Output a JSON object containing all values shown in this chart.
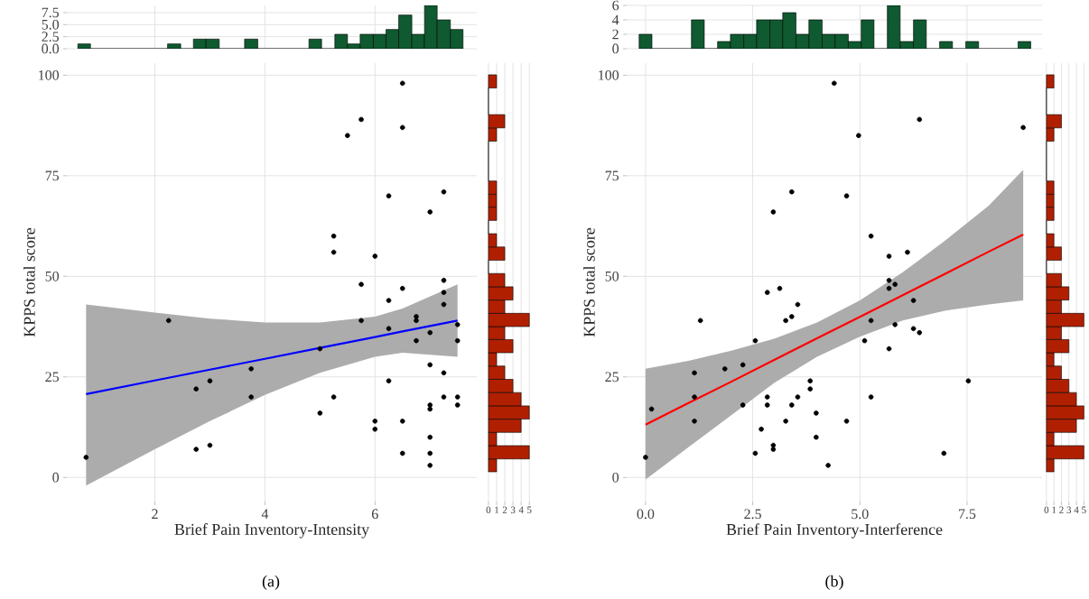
{
  "chart_data": [
    {
      "type": "scatter",
      "xlabel": "Brief Pain Inventory-Intensity",
      "ylabel": "KPPS total score",
      "annotations": [
        "(a)"
      ],
      "xlim": [
        0.4,
        7.85
      ],
      "ylim": [
        -6,
        103
      ],
      "xticks": [
        2,
        4,
        6
      ],
      "yticks": [
        0,
        25,
        50,
        75,
        100
      ],
      "grid": true,
      "series": [
        {
          "type": "line",
          "color": "#0000ff",
          "x": [
            0.75,
            2,
            3,
            4,
            5,
            6,
            6.5,
            7.5
          ],
          "values": [
            20.7,
            24.1,
            26.8,
            29.5,
            32.2,
            34.9,
            36.3,
            39.0
          ],
          "upper": [
            43,
            41,
            39.5,
            38.5,
            38.5,
            40,
            42,
            48
          ],
          "lower": [
            -2,
            7,
            14,
            20.5,
            26,
            30,
            31,
            30
          ]
        },
        {
          "type": "scatter",
          "color": "#000000",
          "marker": "circle",
          "x": [
            0.75,
            2.25,
            2.75,
            2.75,
            3,
            3,
            3.75,
            3.75,
            5,
            5,
            5.25,
            5.25,
            5.25,
            5.5,
            5.75,
            5.75,
            5.75,
            6,
            6,
            6,
            6.25,
            6.25,
            6.25,
            6.25,
            6.5,
            6.5,
            6.5,
            6.5,
            6.5,
            6.75,
            6.75,
            6.75,
            7,
            7,
            7,
            7,
            7,
            7,
            7,
            7,
            7.25,
            7.25,
            7.25,
            7.25,
            7.25,
            7.25,
            7.5,
            7.5,
            7.5,
            7.5
          ],
          "values": [
            5,
            39,
            22,
            7,
            24,
            8,
            27,
            20,
            32,
            16,
            60,
            56,
            20,
            85,
            89,
            48,
            39,
            55,
            14,
            12,
            70,
            44,
            37,
            24,
            98,
            87,
            47,
            14,
            6,
            40,
            39,
            34,
            66,
            36,
            28,
            18,
            17,
            10,
            6,
            3,
            71,
            49,
            46,
            43,
            26,
            20,
            38,
            34,
            20,
            18
          ]
        }
      ]
    },
    {
      "type": "histogram",
      "color": "#0f5a30",
      "bins": [
        0.6,
        0.83,
        2.23,
        2.47,
        2.7,
        2.93,
        3.17,
        3.63,
        3.87,
        4.8,
        5.03,
        5.27,
        5.5,
        5.73,
        5.97,
        6.2,
        6.43,
        6.67,
        6.9,
        7.13,
        7.37,
        7.6
      ],
      "values": [
        1,
        0,
        1,
        0,
        2,
        2,
        0,
        2,
        0,
        2,
        0,
        3,
        1,
        3,
        3,
        4,
        7,
        3,
        9,
        6,
        4
      ],
      "xlim": [
        0.4,
        7.85
      ],
      "ylim": [
        0,
        9
      ],
      "xticks": [
        2,
        4,
        6
      ],
      "yticks": [
        {
          "value": 0,
          "label": "0.0"
        },
        {
          "value": 2.5,
          "label": "2.5"
        },
        {
          "value": 5,
          "label": "5.0"
        },
        {
          "value": 7.5,
          "label": "7.5"
        }
      ],
      "tick_labels": "y",
      "grid": true
    },
    {
      "type": "histogram",
      "orientation": "horizontal",
      "color": "#b02000",
      "bins": [
        1.4,
        4.6,
        7.9,
        11.2,
        14.5,
        17.8,
        21.1,
        24.4,
        27.7,
        31.0,
        34.3,
        37.5,
        40.8,
        44.1,
        47.4,
        50.7,
        54.0,
        57.3,
        60.6,
        63.9,
        67.2,
        70.4,
        73.7,
        83.6,
        86.9,
        90.2,
        96.8,
        100.1
      ],
      "values": [
        1,
        5,
        1,
        4,
        5,
        4,
        3,
        2,
        1,
        3,
        2,
        5,
        2,
        3,
        2,
        0,
        2,
        1,
        0,
        1,
        1,
        1,
        0,
        1,
        2,
        0,
        1
      ],
      "xlim": [
        -0.1,
        5.2
      ],
      "xticks": [
        0,
        1,
        2,
        3,
        4,
        5
      ],
      "ylim": [
        -6,
        103
      ],
      "tick_labels": "x",
      "grid": "x"
    },
    {
      "type": "scatter",
      "xlabel": "Brief Pain Inventory-Interference",
      "ylabel": "KPPS total score",
      "annotations": [
        "(b)"
      ],
      "xlim": [
        -0.44,
        9.25
      ],
      "ylim": [
        -6,
        103
      ],
      "xticks": [
        {
          "value": 0,
          "label": "0.0"
        },
        {
          "value": 2.5,
          "label": "2.5"
        },
        {
          "value": 5,
          "label": "5.0"
        },
        {
          "value": 7.5,
          "label": "7.5"
        }
      ],
      "yticks": [
        0,
        25,
        50,
        75,
        100
      ],
      "grid": true,
      "series": [
        {
          "type": "line",
          "color": "#ff0000",
          "x": [
            0,
            1,
            2,
            3,
            4,
            5,
            6,
            7,
            8,
            8.81
          ],
          "values": [
            13.1,
            18.5,
            23.8,
            29.2,
            34.6,
            39.9,
            45.3,
            50.7,
            56.1,
            60.4
          ],
          "upper": [
            27,
            29,
            31.5,
            34.5,
            38.5,
            44,
            51,
            59,
            67.5,
            76.5
          ],
          "lower": [
            -0.5,
            7.5,
            15.5,
            23.5,
            30,
            35,
            39,
            41.5,
            43,
            44
          ]
        },
        {
          "type": "scatter",
          "color": "#000000",
          "marker": "circle",
          "x": [
            0,
            0.14,
            1.14,
            1.14,
            1.14,
            1.28,
            1.85,
            2.27,
            2.27,
            2.56,
            2.56,
            2.7,
            2.84,
            2.84,
            2.84,
            2.98,
            2.98,
            2.98,
            3.13,
            3.27,
            3.27,
            3.41,
            3.41,
            3.41,
            3.55,
            3.55,
            3.84,
            3.84,
            3.98,
            3.98,
            4.26,
            4.4,
            4.69,
            4.69,
            4.97,
            5.11,
            5.26,
            5.26,
            5.26,
            5.68,
            5.68,
            5.68,
            5.68,
            5.82,
            5.82,
            6.11,
            6.25,
            6.25,
            6.39,
            6.39,
            6.96,
            7.53,
            8.81
          ],
          "values": [
            5,
            17,
            26,
            20,
            14,
            39,
            27,
            28,
            18,
            34,
            6,
            12,
            46,
            20,
            18,
            66,
            8,
            7,
            47,
            39,
            14,
            71,
            40,
            18,
            20,
            43,
            24,
            22,
            16,
            10,
            3,
            98,
            70,
            14,
            85,
            34,
            60,
            39,
            20,
            55,
            49,
            47,
            32,
            48,
            38,
            56,
            44,
            37,
            36,
            89,
            6,
            24,
            87
          ]
        }
      ]
    },
    {
      "type": "histogram",
      "color": "#0f5a30",
      "bins": [
        -0.15,
        0.15,
        1.07,
        1.37,
        1.68,
        1.98,
        2.29,
        2.59,
        2.9,
        3.2,
        3.51,
        3.81,
        4.12,
        4.42,
        4.73,
        5.03,
        5.33,
        5.64,
        5.94,
        6.25,
        6.55,
        6.86,
        7.16,
        7.47,
        7.77,
        8.69,
        8.99
      ],
      "values": [
        2,
        0,
        4,
        0,
        1,
        2,
        2,
        4,
        4,
        5,
        2,
        4,
        2,
        2,
        1,
        4,
        0,
        6,
        1,
        4,
        0,
        1,
        0,
        1,
        0,
        1
      ],
      "xlim": [
        -0.44,
        9.25
      ],
      "ylim": [
        0,
        6
      ],
      "xticks": [
        0,
        2.5,
        5,
        7.5
      ],
      "yticks": [
        0,
        2,
        4,
        6
      ],
      "tick_labels": "y",
      "grid": true
    },
    {
      "type": "histogram",
      "orientation": "horizontal",
      "color": "#b02000",
      "bins": [
        1.4,
        4.6,
        7.9,
        11.2,
        14.5,
        17.8,
        21.1,
        24.4,
        27.7,
        31.0,
        34.3,
        37.5,
        40.8,
        44.1,
        47.4,
        50.7,
        54.0,
        57.3,
        60.6,
        63.9,
        67.2,
        70.4,
        73.7,
        83.6,
        86.9,
        90.2,
        96.8,
        100.1
      ],
      "values": [
        1,
        5,
        1,
        4,
        5,
        4,
        3,
        2,
        1,
        3,
        2,
        5,
        2,
        3,
        2,
        0,
        2,
        1,
        0,
        1,
        1,
        1,
        0,
        1,
        2,
        0,
        1
      ],
      "xlim": [
        -0.1,
        5.2
      ],
      "xticks": [
        0,
        1,
        2,
        3,
        4,
        5
      ],
      "ylim": [
        -6,
        103
      ],
      "tick_labels": "x",
      "grid": "x"
    }
  ]
}
